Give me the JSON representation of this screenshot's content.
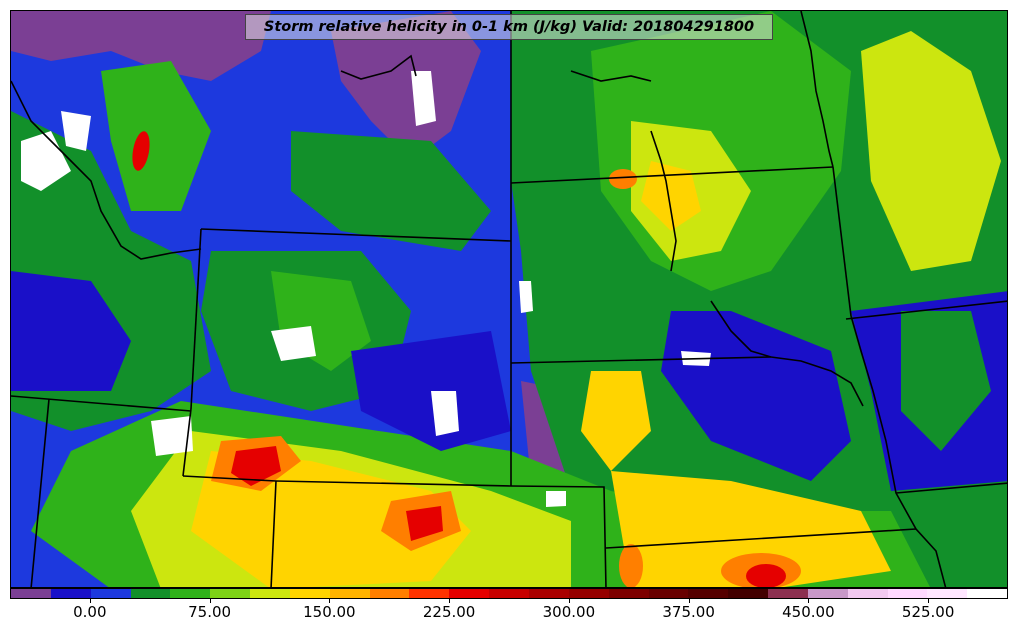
{
  "title": "Storm relative helicity in 0-1 km (J/kg) Valid: 201804291800",
  "colorbar": {
    "colors": [
      "#7b3f94",
      "#1a10c8",
      "#1d39de",
      "#12902a",
      "#2fb21a",
      "#7ed317",
      "#cce60f",
      "#ffd400",
      "#ffb300",
      "#ff7f00",
      "#ff3300",
      "#e50000",
      "#c70000",
      "#aa0000",
      "#960000",
      "#7d0000",
      "#680000",
      "#550000",
      "#420000",
      "#8c3050",
      "#c898c8",
      "#f2c8f0",
      "#ffd8ff",
      "#ffe6ff",
      "#ffffff"
    ],
    "ticks": [
      {
        "label": "0.00",
        "value": 0
      },
      {
        "label": "75.00",
        "value": 75
      },
      {
        "label": "150.00",
        "value": 150
      },
      {
        "label": "225.00",
        "value": 225
      },
      {
        "label": "300.00",
        "value": 300
      },
      {
        "label": "375.00",
        "value": 375
      },
      {
        "label": "450.00",
        "value": 450
      },
      {
        "label": "525.00",
        "value": 525
      }
    ],
    "range": [
      -50,
      575
    ]
  },
  "map_layers": {
    "background_color": "#1d39de",
    "level_colors": {
      "negative": "#7b3f94",
      "low": "#1a10c8",
      "green": "#12902a",
      "bright_green": "#2fb21a",
      "yellow_green": "#cce60f",
      "yellow": "#ffd400",
      "orange": "#ff7f00",
      "red": "#e50000",
      "dark_red": "#aa0000",
      "white": "#ffffff"
    },
    "border_color": "#000000"
  }
}
